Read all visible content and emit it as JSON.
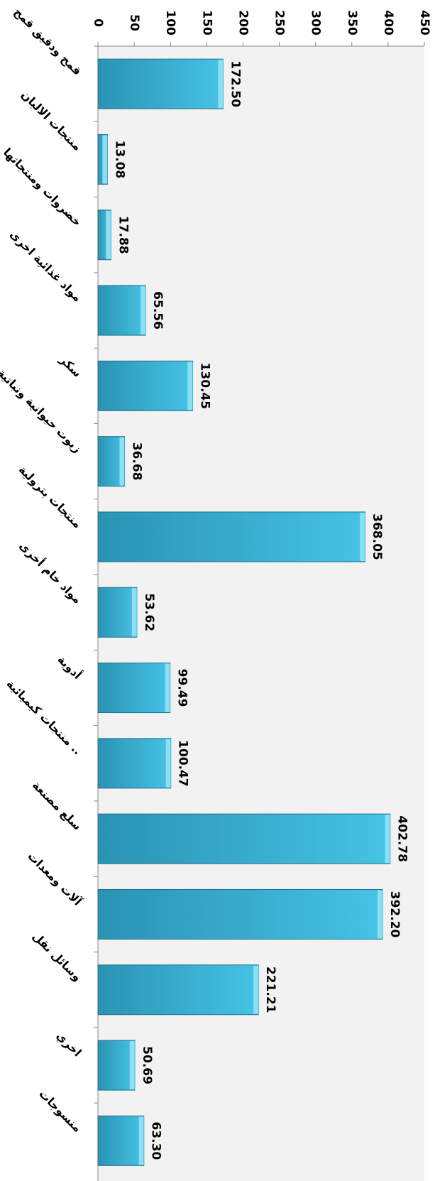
{
  "chart_data": {
    "type": "bar",
    "orientation": "horizontal",
    "categories": [
      "قمح ودقيق قمح",
      "منتجات الالبان",
      "خضروات ومنتجاتها",
      "مواد غذائية اخرى",
      "سكر",
      "زيوت حيوانية ونباتية",
      "منتجات بترولية",
      "مواد خام أخرى",
      "أدوية",
      "منتجات كيميائية ..",
      "سلع مصنعة",
      "آلات ومعدات",
      "وسائل نقل",
      "اخري",
      "منسوجات"
    ],
    "values": [
      172.5,
      13.08,
      17.88,
      65.56,
      130.45,
      36.68,
      368.05,
      53.62,
      99.49,
      100.47,
      402.78,
      392.2,
      221.21,
      50.69,
      63.3
    ],
    "data_labels": [
      "172.50",
      "13.08",
      "17.88",
      "65.56",
      "130.45",
      "36.68",
      "368.05",
      "53.62",
      "99.49",
      "100.47",
      "402.78",
      "392.20",
      "221.21",
      "50.69",
      "63.30"
    ],
    "ticks": [
      "0",
      "50",
      "100",
      "150",
      "200",
      "250",
      "300",
      "350",
      "400",
      "450"
    ],
    "tick_values": [
      0,
      50,
      100,
      150,
      200,
      250,
      300,
      350,
      400,
      450
    ],
    "ylim": [
      0,
      450
    ],
    "title": "",
    "xlabel": "",
    "ylabel": "",
    "grid": false,
    "legend": "none",
    "colors": {
      "bar_dark": "#2a93b3",
      "bar_light": "#46c3e6",
      "bar_edge": "#1f6f88",
      "bevel": "#9fe3f5",
      "plot_bg": "#f2f2f2",
      "axis": "#888888"
    }
  }
}
